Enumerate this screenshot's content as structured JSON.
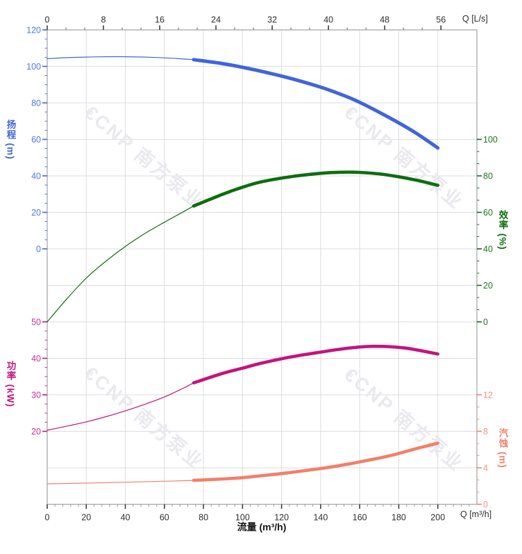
{
  "watermark": {
    "logo_glyph": "€",
    "text": "CNP 南方泵业"
  },
  "chart_data": {
    "type": "line",
    "title": "",
    "x_axis_bottom": {
      "title": "流量 (m³/h)",
      "unit": "Q [m³/h]",
      "range": [
        0,
        220
      ],
      "major_ticks": [
        0,
        20,
        40,
        60,
        80,
        100,
        120,
        140,
        160,
        180,
        200
      ],
      "minor_step": 4
    },
    "x_axis_top": {
      "unit": "Q [L/s]",
      "major_ticks": [
        0,
        8,
        16,
        24,
        32,
        40,
        48,
        56
      ]
    },
    "y_axes": [
      {
        "id": "head",
        "title": "扬程 (m)",
        "side": "left",
        "label_color": "#5276E2",
        "major_ticks": [
          120,
          100,
          80,
          60,
          40,
          20,
          0
        ],
        "range": [
          0,
          120
        ]
      },
      {
        "id": "power",
        "title": "功率 (kW)",
        "side": "left",
        "label_color": "#CE2F96",
        "major_ticks": [
          50,
          40,
          30,
          20
        ],
        "range": [
          20,
          50
        ]
      },
      {
        "id": "eff",
        "title": "效率 (%)",
        "side": "right",
        "label_color": "#1E741E",
        "major_ticks": [
          100,
          80,
          60,
          40,
          20,
          0
        ],
        "range": [
          0,
          100
        ]
      },
      {
        "id": "npsh",
        "title": "汽蚀 (m)",
        "side": "right",
        "label_color": "#F4917E",
        "major_ticks": [
          12,
          8,
          4,
          0
        ],
        "range": [
          0,
          12
        ]
      }
    ],
    "series": [
      {
        "name": "head-curve",
        "axis": "head",
        "color": "#4065DB",
        "thin_points": [
          [
            0,
            104.2
          ],
          [
            10,
            104.8
          ],
          [
            20,
            105.1
          ],
          [
            30,
            105.3
          ],
          [
            40,
            105.3
          ],
          [
            50,
            105.1
          ],
          [
            60,
            104.7
          ],
          [
            68,
            104.2
          ],
          [
            75,
            103.7
          ]
        ],
        "thick_points": [
          [
            75,
            103.7
          ],
          [
            90,
            101.5
          ],
          [
            100,
            99.5
          ],
          [
            110,
            97.2
          ],
          [
            125,
            93.3
          ],
          [
            140,
            88.6
          ],
          [
            150,
            84.8
          ],
          [
            160,
            80.3
          ],
          [
            175,
            72.0
          ],
          [
            188,
            64.0
          ],
          [
            200,
            55.3
          ]
        ]
      },
      {
        "name": "efficiency-curve",
        "axis": "eff",
        "color": "#0C6E0C",
        "thin_points": [
          [
            0,
            0
          ],
          [
            10,
            12.5
          ],
          [
            20,
            24
          ],
          [
            30,
            33.2
          ],
          [
            40,
            41.3
          ],
          [
            50,
            48.4
          ],
          [
            60,
            54.6
          ],
          [
            70,
            60.5
          ],
          [
            75,
            63.5
          ]
        ],
        "thick_points": [
          [
            75,
            63.5
          ],
          [
            90,
            70
          ],
          [
            100,
            73.8
          ],
          [
            110,
            76.8
          ],
          [
            125,
            79.6
          ],
          [
            140,
            81.4
          ],
          [
            150,
            82
          ],
          [
            160,
            81.9
          ],
          [
            170,
            81.1
          ],
          [
            180,
            79.5
          ],
          [
            190,
            77.4
          ],
          [
            200,
            74.8
          ]
        ]
      },
      {
        "name": "power-curve",
        "axis": "power",
        "color": "#C2157F",
        "thin_points": [
          [
            0,
            20.3
          ],
          [
            10,
            21.4
          ],
          [
            20,
            22.6
          ],
          [
            30,
            24
          ],
          [
            40,
            25.6
          ],
          [
            50,
            27.4
          ],
          [
            60,
            29.4
          ],
          [
            70,
            31.9
          ],
          [
            75,
            33.3
          ]
        ],
        "thick_points": [
          [
            75,
            33.3
          ],
          [
            90,
            35.9
          ],
          [
            100,
            37.3
          ],
          [
            110,
            38.7
          ],
          [
            125,
            40.4
          ],
          [
            140,
            41.7
          ],
          [
            150,
            42.5
          ],
          [
            160,
            43.1
          ],
          [
            167,
            43.3
          ],
          [
            175,
            43.2
          ],
          [
            185,
            42.7
          ],
          [
            200,
            41.2
          ]
        ]
      },
      {
        "name": "npsh-curve",
        "axis": "npsh",
        "color": "#F2806A",
        "thin_points": [
          [
            0,
            2.25
          ],
          [
            20,
            2.32
          ],
          [
            40,
            2.42
          ],
          [
            55,
            2.5
          ],
          [
            75,
            2.62
          ]
        ],
        "thick_points": [
          [
            75,
            2.62
          ],
          [
            90,
            2.78
          ],
          [
            100,
            2.92
          ],
          [
            115,
            3.25
          ],
          [
            125,
            3.5
          ],
          [
            140,
            3.92
          ],
          [
            150,
            4.25
          ],
          [
            160,
            4.65
          ],
          [
            175,
            5.3
          ],
          [
            188,
            6.05
          ],
          [
            200,
            6.7
          ]
        ]
      }
    ]
  }
}
